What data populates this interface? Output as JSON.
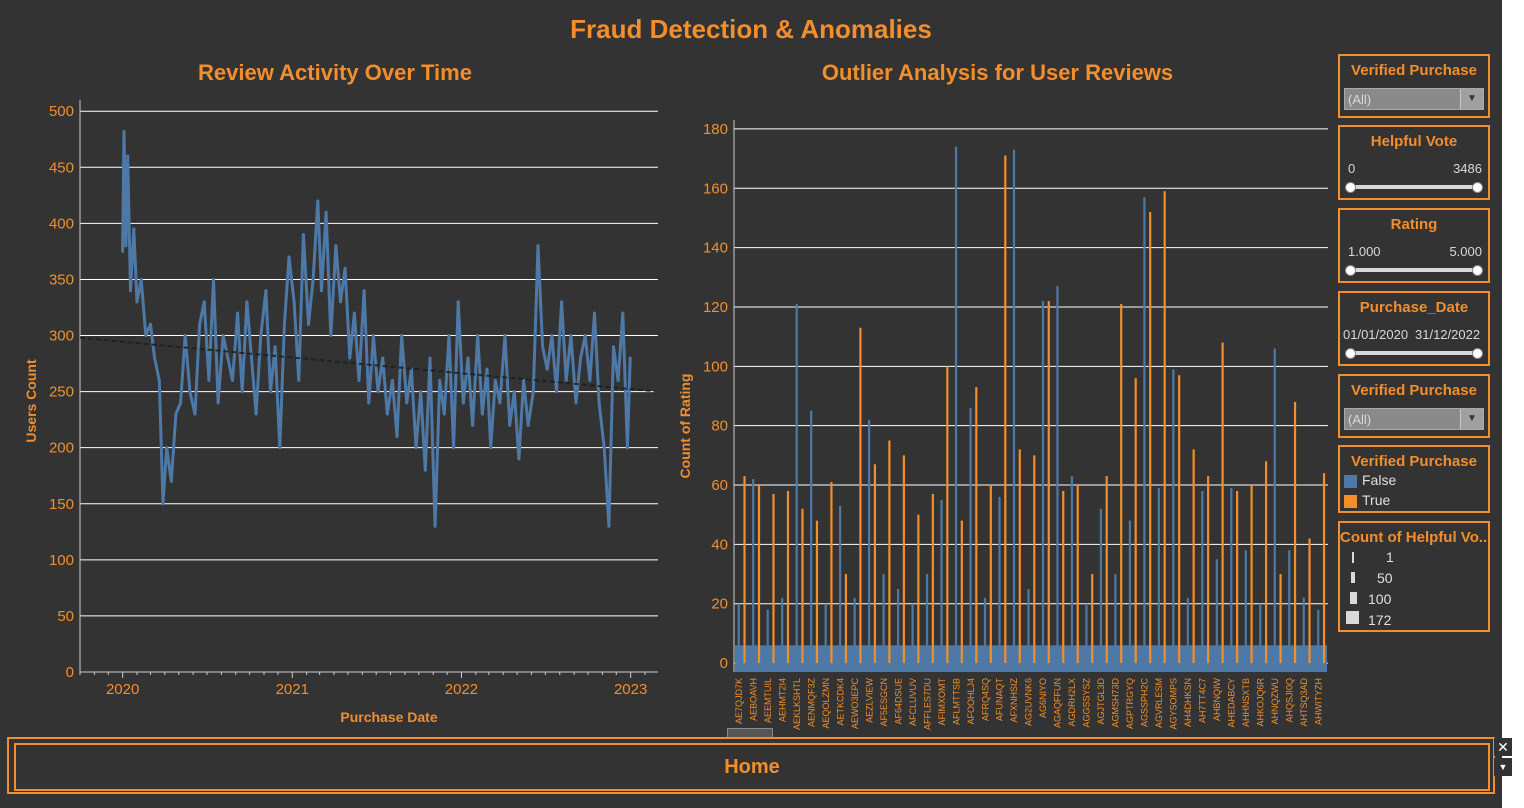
{
  "dashboard": {
    "title": "Fraud Detection & Anomalies",
    "home_label": "Home"
  },
  "colors": {
    "accent": "#f28e2b",
    "false_series": "#4e79a7",
    "true_series": "#f28e2b",
    "background": "#333333"
  },
  "chart_data": [
    {
      "type": "line",
      "title": "Review Activity Over Time",
      "xlabel": "Purchase Date",
      "ylabel": "Users Count",
      "x_ticks": [
        "2020",
        "2021",
        "2022",
        "2023"
      ],
      "x_range": [
        "2019-10-01",
        "2023-03-01"
      ],
      "y_ticks": [
        0,
        50,
        100,
        150,
        200,
        250,
        300,
        350,
        400,
        450,
        500
      ],
      "ylim": [
        0,
        510
      ],
      "grid": true,
      "series": [
        {
          "x": [
            "2020-01-01",
            "2020-01-04",
            "2020-01-08",
            "2020-01-12",
            "2020-01-18",
            "2020-01-25",
            "2020-02-01",
            "2020-02-10",
            "2020-02-20",
            "2020-03-01",
            "2020-03-10",
            "2020-03-20",
            "2020-03-28",
            "2020-04-05",
            "2020-04-15",
            "2020-04-25",
            "2020-05-05",
            "2020-05-15",
            "2020-05-25",
            "2020-06-05",
            "2020-06-15",
            "2020-06-25",
            "2020-07-05",
            "2020-07-15",
            "2020-07-25",
            "2020-08-05",
            "2020-08-15",
            "2020-08-25",
            "2020-09-05",
            "2020-09-15",
            "2020-09-25",
            "2020-10-05",
            "2020-10-15",
            "2020-10-25",
            "2020-11-05",
            "2020-11-15",
            "2020-11-25",
            "2020-12-05",
            "2020-12-15",
            "2020-12-25",
            "2021-01-05",
            "2021-01-15",
            "2021-01-25",
            "2021-02-05",
            "2021-02-15",
            "2021-02-25",
            "2021-03-05",
            "2021-03-15",
            "2021-03-25",
            "2021-04-05",
            "2021-04-15",
            "2021-04-25",
            "2021-05-05",
            "2021-05-15",
            "2021-05-25",
            "2021-06-05",
            "2021-06-15",
            "2021-06-25",
            "2021-07-05",
            "2021-07-15",
            "2021-07-25",
            "2021-08-05",
            "2021-08-15",
            "2021-08-25",
            "2021-09-05",
            "2021-09-15",
            "2021-09-25",
            "2021-10-05",
            "2021-10-15",
            "2021-10-25",
            "2021-11-05",
            "2021-11-15",
            "2021-11-25",
            "2021-12-05",
            "2021-12-15",
            "2021-12-25",
            "2022-01-05",
            "2022-01-15",
            "2022-01-25",
            "2022-02-05",
            "2022-02-15",
            "2022-02-25",
            "2022-03-05",
            "2022-03-15",
            "2022-03-25",
            "2022-04-05",
            "2022-04-15",
            "2022-04-25",
            "2022-05-05",
            "2022-05-15",
            "2022-05-25",
            "2022-06-05",
            "2022-06-15",
            "2022-06-25",
            "2022-07-05",
            "2022-07-15",
            "2022-07-25",
            "2022-08-05",
            "2022-08-15",
            "2022-08-25",
            "2022-09-05",
            "2022-09-15",
            "2022-09-25",
            "2022-10-05",
            "2022-10-15",
            "2022-10-25",
            "2022-11-05",
            "2022-11-15",
            "2022-11-25",
            "2022-12-05",
            "2022-12-15",
            "2022-12-25",
            "2022-12-31"
          ],
          "y": [
            375,
            482,
            380,
            460,
            340,
            395,
            330,
            350,
            300,
            310,
            280,
            260,
            150,
            200,
            170,
            230,
            240,
            300,
            250,
            230,
            310,
            330,
            260,
            350,
            240,
            300,
            280,
            260,
            320,
            250,
            330,
            280,
            230,
            300,
            340,
            250,
            290,
            200,
            310,
            370,
            330,
            260,
            390,
            310,
            350,
            420,
            340,
            410,
            300,
            380,
            330,
            360,
            280,
            320,
            260,
            340,
            240,
            300,
            250,
            280,
            230,
            260,
            210,
            300,
            240,
            270,
            200,
            250,
            180,
            280,
            130,
            260,
            230,
            300,
            200,
            330,
            240,
            280,
            220,
            300,
            230,
            270,
            200,
            260,
            240,
            300,
            220,
            250,
            190,
            260,
            220,
            250,
            380,
            290,
            270,
            300,
            250,
            330,
            260,
            300,
            240,
            280,
            300,
            260,
            320,
            240,
            200,
            130,
            290,
            260,
            320,
            200,
            280
          ]
        }
      ],
      "trend_line": {
        "y_start": 298,
        "y_end": 250
      }
    },
    {
      "type": "bar",
      "title": "Outlier Analysis for User Reviews",
      "ylabel": "Count of Rating",
      "y_ticks": [
        0,
        20,
        40,
        60,
        80,
        100,
        120,
        140,
        160,
        180
      ],
      "ylim": [
        -3,
        183
      ],
      "grid": true,
      "categories": [
        "AE7QJD7K",
        "AEBOAVH",
        "AEEMTUIL",
        "AEHMT2I4",
        "AEKLKSHTL",
        "AENMQF3Z",
        "AEQOLZMN",
        "AETKCDK4",
        "AEWO3EPC",
        "AEZLVIEW",
        "AF5ESGCN",
        "AF64DSUE",
        "AFCLUVUV",
        "AFFLES7DU",
        "AFIMXOMT",
        "AFLMTTSB",
        "AFOOHLJ4",
        "AFRQ4SQ",
        "AFUNAQT",
        "AFXNHSIZ",
        "AG2UVNK6",
        "AG6NIYO",
        "AGAQFFUN",
        "AGDRH2LX",
        "AGGSSYSZ",
        "AGJTGL3D",
        "AGMSH73D",
        "AGPTRGYQ",
        "AGSSPH2C",
        "AGVRLESM",
        "AGYSOMPS",
        "AH4DHKSN",
        "AH7TT4C7",
        "AHBNQIW",
        "AHEDABCY",
        "AHHNSXTB",
        "AHKOJQ6R",
        "AHNQZWU",
        "AHQSJI0Q",
        "AHTSQ3AD",
        "AHWITYZH"
      ],
      "series": [
        {
          "name": "False",
          "values": [
            20,
            62,
            18,
            22,
            121,
            85,
            20,
            53,
            22,
            82,
            30,
            25,
            20,
            30,
            55,
            174,
            86,
            22,
            56,
            173,
            25,
            122,
            127,
            63,
            20,
            52,
            30,
            48,
            157,
            59,
            99,
            22,
            58,
            35,
            59,
            38,
            20,
            106,
            38,
            22,
            18
          ]
        },
        {
          "name": "True",
          "values": [
            63,
            60,
            57,
            58,
            52,
            48,
            61,
            30,
            113,
            67,
            75,
            70,
            50,
            57,
            100,
            48,
            93,
            60,
            171,
            72,
            70,
            122,
            58,
            60,
            30,
            63,
            121,
            96,
            152,
            159,
            97,
            72,
            63,
            108,
            58,
            60,
            68,
            30,
            88,
            42,
            64
          ]
        }
      ],
      "legend": {
        "title": "Verified Purchase",
        "entries": [
          "False",
          "True"
        ]
      }
    }
  ],
  "filters": {
    "verified1": {
      "title": "Verified Purchase",
      "value": "(All)"
    },
    "helpful": {
      "title": "Helpful Vote",
      "min": "0",
      "max": "3486"
    },
    "rating": {
      "title": "Rating",
      "min": "1.000",
      "max": "5.000"
    },
    "purchase_date": {
      "title": "Purchase_Date",
      "min": "01/01/2020",
      "max": "31/12/2022"
    },
    "verified2": {
      "title": "Verified Purchase",
      "value": "(All)"
    }
  },
  "legend_verified": {
    "title": "Verified Purchase",
    "items": [
      "False",
      "True"
    ]
  },
  "legend_size": {
    "title": "Count of Helpful Vo..",
    "items": [
      "1",
      "50",
      "100",
      "172"
    ]
  }
}
